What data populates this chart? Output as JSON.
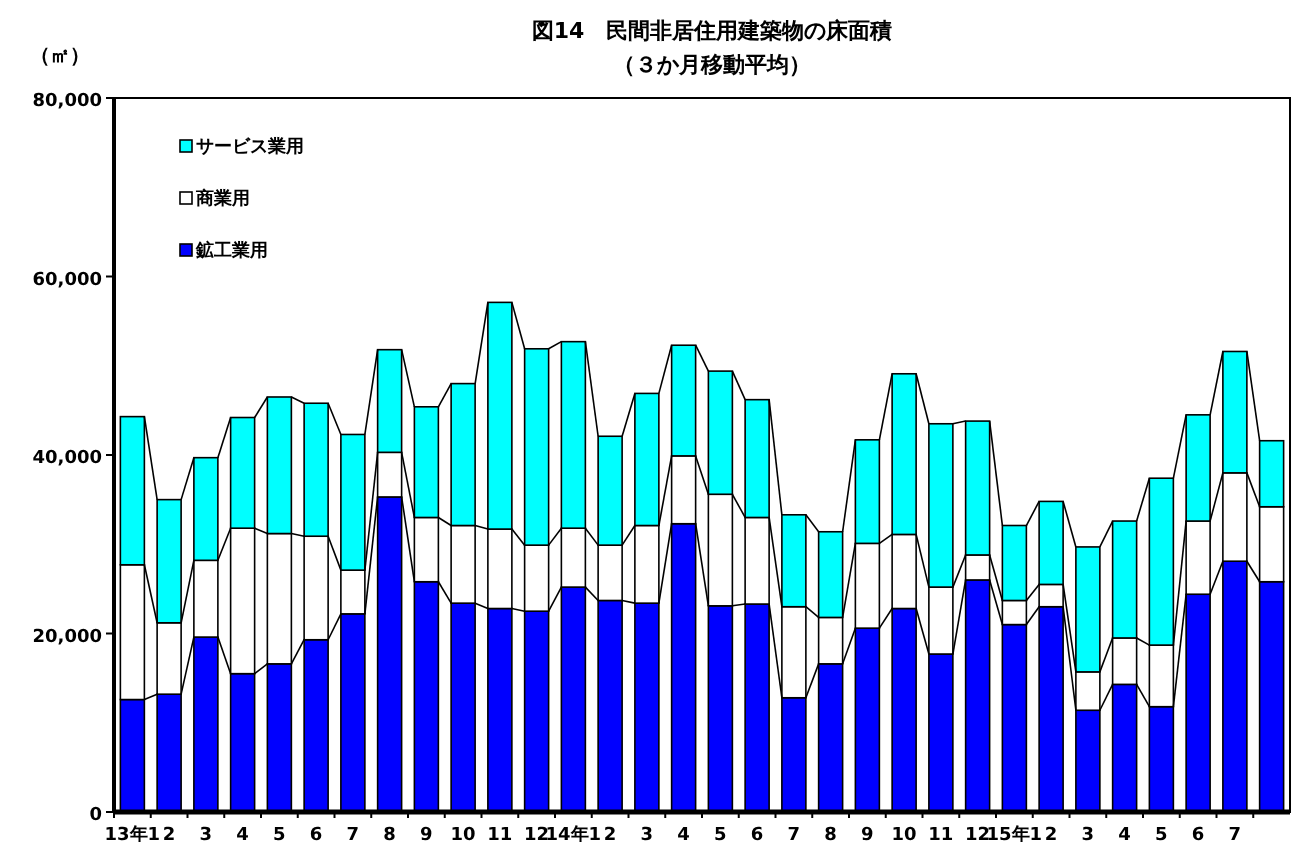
{
  "chart_data": {
    "type": "bar",
    "stacked": true,
    "title": "図14　民間非居住用建築物の床面積",
    "subtitle": "（３か月移動平均）",
    "ylabel": "（㎡）",
    "categories": [
      "13年1",
      "2",
      "3",
      "4",
      "5",
      "6",
      "7",
      "8",
      "9",
      "10",
      "11",
      "12",
      "14年1",
      "2",
      "3",
      "4",
      "5",
      "6",
      "7",
      "8",
      "9",
      "10",
      "11",
      "12",
      "15年1",
      "2",
      "3",
      "4",
      "5",
      "6",
      "7",
      null
    ],
    "series": [
      {
        "name": "鉱工業用",
        "color": "#0000ff",
        "values": [
          12600,
          13200,
          19600,
          15500,
          16600,
          19300,
          22200,
          35300,
          25800,
          23400,
          22800,
          22500,
          25200,
          23700,
          23400,
          32300,
          23100,
          23300,
          12800,
          16600,
          20600,
          22800,
          17700,
          26000,
          21000,
          23000,
          11400,
          14300,
          11800,
          24400,
          28100,
          25800
        ]
      },
      {
        "name": "商業用",
        "color": "#ffffff",
        "values": [
          15100,
          8000,
          8600,
          16300,
          14600,
          11600,
          4900,
          5000,
          7200,
          8700,
          8900,
          7400,
          6600,
          6200,
          8700,
          7600,
          12500,
          9700,
          10200,
          5200,
          9500,
          8300,
          7500,
          2800,
          2700,
          2500,
          4300,
          5200,
          6900,
          8200,
          9900,
          8400
        ]
      },
      {
        "name": "サービス業用",
        "color": "#00ffff",
        "values": [
          16600,
          13800,
          11500,
          12400,
          15300,
          14900,
          15200,
          11500,
          12400,
          15900,
          25400,
          22000,
          20900,
          12200,
          14800,
          12400,
          13800,
          13200,
          10300,
          9600,
          11600,
          18000,
          18300,
          15000,
          8400,
          9300,
          14000,
          13100,
          18700,
          11900,
          13600,
          7400
        ]
      }
    ],
    "ylim": [
      0,
      80000
    ],
    "yticks": [
      0,
      {
        "value": 20000,
        "label": "20,000"
      },
      {
        "value": 40000,
        "label": "40,000"
      },
      {
        "value": 60000,
        "label": "60,000"
      },
      {
        "value": 80000,
        "label": "80,000"
      }
    ],
    "legend": "top left",
    "grid": false
  }
}
